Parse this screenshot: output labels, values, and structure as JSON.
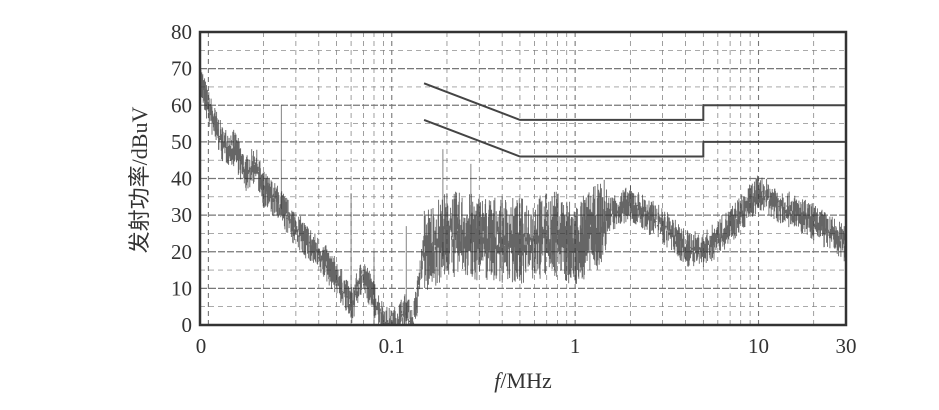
{
  "chart_data": {
    "type": "line",
    "xlabel_italic": "f",
    "xlabel": "/MHz",
    "ylabel": "发射功率/dBuV",
    "x_scale": "log",
    "xlim": [
      0.009,
      30
    ],
    "ylim": [
      0,
      80
    ],
    "x_ticks": [
      {
        "value": 0.009,
        "label": "0"
      },
      {
        "value": 0.1,
        "label": "0.1"
      },
      {
        "value": 1,
        "label": "1"
      },
      {
        "value": 10,
        "label": "10"
      },
      {
        "value": 30,
        "label": "30"
      }
    ],
    "y_ticks": [
      0,
      10,
      20,
      30,
      40,
      50,
      60,
      70,
      80
    ],
    "grid": true,
    "colors": {
      "trace": "#333333",
      "limit": "#444444",
      "grid": "#777777"
    },
    "limit_lines": [
      {
        "x": [
          0.15,
          0.5,
          5,
          5,
          30
        ],
        "y": [
          66,
          56,
          56,
          60,
          60
        ]
      },
      {
        "x": [
          0.15,
          0.5,
          5,
          5,
          30
        ],
        "y": [
          56,
          46,
          46,
          50,
          50
        ]
      }
    ],
    "emission": {
      "x": [
        0.009,
        0.01,
        0.012,
        0.014,
        0.016,
        0.018,
        0.02,
        0.025,
        0.03,
        0.04,
        0.05,
        0.06,
        0.07,
        0.08,
        0.09,
        0.1,
        0.12,
        0.13,
        0.15,
        0.2,
        0.3,
        0.5,
        0.8,
        1,
        1.5,
        2,
        3,
        4,
        5,
        7,
        10,
        15,
        20,
        30
      ],
      "y": [
        68,
        60,
        50,
        49,
        42,
        45,
        38,
        33,
        27,
        20,
        14,
        6,
        15,
        8,
        2,
        0,
        5,
        0,
        22,
        27,
        26,
        25,
        27,
        24,
        31,
        34,
        28,
        22,
        21,
        28,
        37,
        32,
        29,
        23
      ]
    }
  }
}
